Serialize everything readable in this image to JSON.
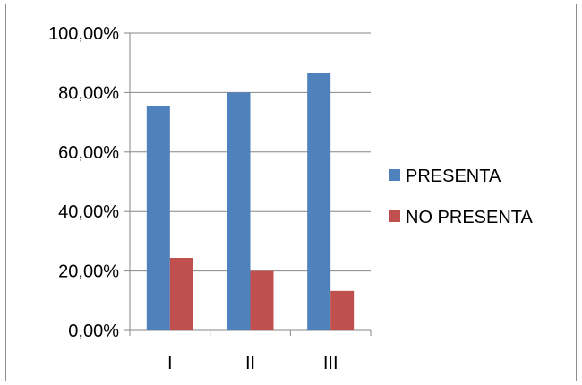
{
  "chart_data": {
    "type": "bar",
    "categories": [
      "I",
      "II",
      "III"
    ],
    "series": [
      {
        "name": "PRESENTA",
        "values": [
          75.6,
          80.0,
          86.7
        ],
        "color": "#4f81bd"
      },
      {
        "name": "NO PRESENTA",
        "values": [
          24.4,
          20.0,
          13.3
        ],
        "color": "#c0504d"
      }
    ],
    "y_ticks": [
      "0,00%",
      "20,00%",
      "40,00%",
      "60,00%",
      "80,00%",
      "100,00%"
    ],
    "ylim": [
      0,
      100
    ],
    "grid": true,
    "legend_position": "right",
    "title": "",
    "xlabel": "",
    "ylabel": ""
  }
}
